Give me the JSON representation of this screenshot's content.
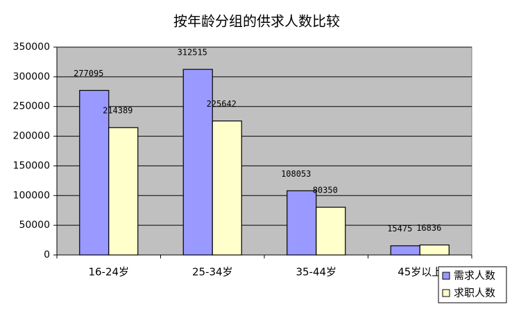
{
  "chart_data": {
    "type": "bar",
    "title": "按年龄分组的供求人数比较",
    "categories": [
      "16-24岁",
      "25-34岁",
      "35-44岁",
      "45岁以上"
    ],
    "series": [
      {
        "name": "需求人数",
        "color": "#9999ff",
        "values": [
          277095,
          312515,
          108053,
          15475
        ]
      },
      {
        "name": "求职人数",
        "color": "#ffffcc",
        "values": [
          214389,
          225642,
          80350,
          16836
        ]
      }
    ],
    "ylim": [
      0,
      350000
    ],
    "yticks": [
      0,
      50000,
      100000,
      150000,
      200000,
      250000,
      300000,
      350000
    ],
    "grid": true,
    "plot_background": "#c0c0c0"
  }
}
